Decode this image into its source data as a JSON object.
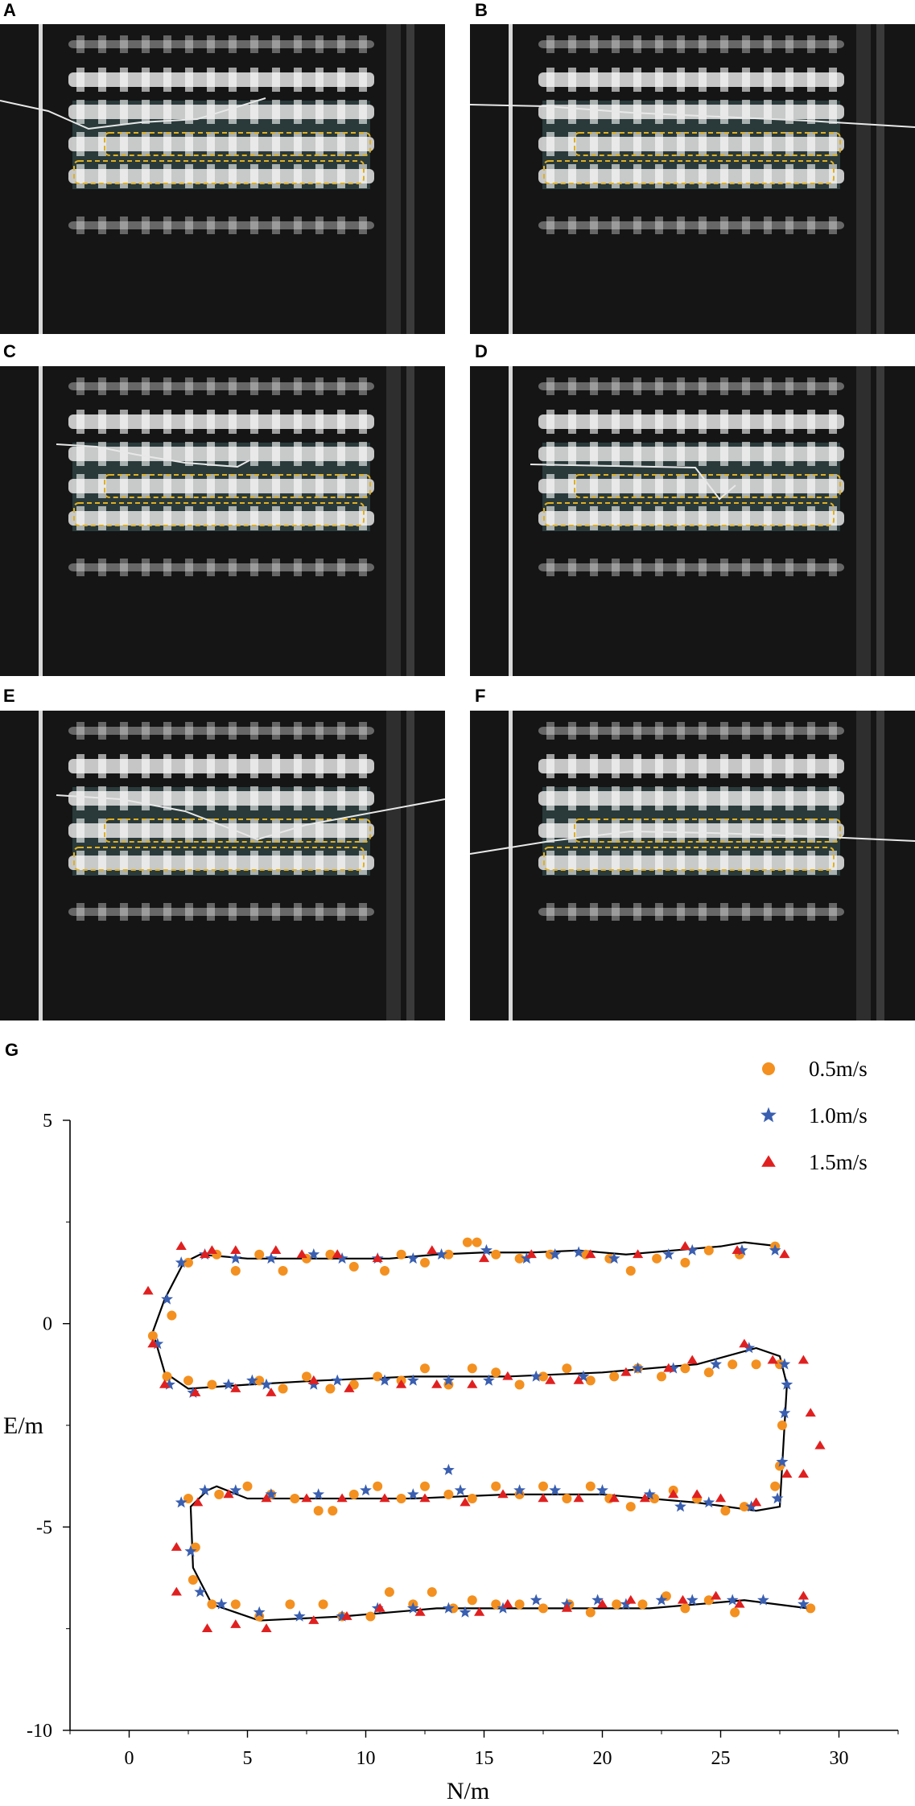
{
  "panels": [
    {
      "label": "A"
    },
    {
      "label": "B"
    },
    {
      "label": "C"
    },
    {
      "label": "D"
    },
    {
      "label": "E"
    },
    {
      "label": "F"
    }
  ],
  "chart_label": "G",
  "chart_data": {
    "type": "scatter",
    "title": "",
    "xlabel": "N/m",
    "ylabel": "E/m",
    "xlim": [
      -2.5,
      32.5
    ],
    "ylim": [
      -10,
      5
    ],
    "xticks": [
      0,
      5,
      10,
      15,
      20,
      25,
      30
    ],
    "yticks": [
      5,
      0,
      -5,
      -10
    ],
    "legend_position": "top-right",
    "reference_path": [
      [
        27.5,
        1.9
      ],
      [
        26,
        2.0
      ],
      [
        25,
        1.9
      ],
      [
        23,
        1.8
      ],
      [
        21,
        1.7
      ],
      [
        19,
        1.8
      ],
      [
        17,
        1.75
      ],
      [
        15,
        1.75
      ],
      [
        13,
        1.7
      ],
      [
        11,
        1.6
      ],
      [
        9,
        1.6
      ],
      [
        7,
        1.6
      ],
      [
        5,
        1.6
      ],
      [
        3,
        1.7
      ],
      [
        2.3,
        1.5
      ],
      [
        1.5,
        0.6
      ],
      [
        1.0,
        -0.2
      ],
      [
        1.5,
        -1.2
      ],
      [
        2.5,
        -1.6
      ],
      [
        5,
        -1.5
      ],
      [
        8,
        -1.4
      ],
      [
        12,
        -1.3
      ],
      [
        16,
        -1.3
      ],
      [
        20,
        -1.2
      ],
      [
        24,
        -1.0
      ],
      [
        26.5,
        -0.6
      ],
      [
        27.5,
        -0.8
      ],
      [
        27.8,
        -1.5
      ],
      [
        27.6,
        -3.5
      ],
      [
        27.5,
        -4.5
      ],
      [
        26.5,
        -4.6
      ],
      [
        24,
        -4.4
      ],
      [
        20,
        -4.2
      ],
      [
        16,
        -4.2
      ],
      [
        12,
        -4.3
      ],
      [
        8,
        -4.3
      ],
      [
        5,
        -4.3
      ],
      [
        3.7,
        -4.0
      ],
      [
        3.3,
        -4.1
      ],
      [
        2.6,
        -4.5
      ],
      [
        2.7,
        -6.0
      ],
      [
        3.5,
        -6.9
      ],
      [
        5.5,
        -7.3
      ],
      [
        9,
        -7.2
      ],
      [
        13,
        -7.0
      ],
      [
        18,
        -7.0
      ],
      [
        22,
        -7.0
      ],
      [
        26,
        -6.8
      ],
      [
        28.7,
        -7.0
      ]
    ],
    "series": [
      {
        "name": "0.5m/s",
        "marker": "circle",
        "color": "#f39020",
        "points": [
          [
            27.3,
            1.9
          ],
          [
            25.8,
            1.7
          ],
          [
            24.5,
            1.8
          ],
          [
            23.5,
            1.5
          ],
          [
            22.3,
            1.6
          ],
          [
            21.2,
            1.3
          ],
          [
            20.3,
            1.6
          ],
          [
            19.3,
            1.7
          ],
          [
            17.8,
            1.7
          ],
          [
            16.5,
            1.6
          ],
          [
            15.5,
            1.7
          ],
          [
            14.7,
            2.0
          ],
          [
            14.3,
            2.0
          ],
          [
            13.5,
            1.7
          ],
          [
            12.5,
            1.5
          ],
          [
            11.5,
            1.7
          ],
          [
            10.8,
            1.3
          ],
          [
            9.5,
            1.4
          ],
          [
            8.5,
            1.7
          ],
          [
            7.5,
            1.6
          ],
          [
            6.5,
            1.3
          ],
          [
            5.5,
            1.7
          ],
          [
            4.5,
            1.3
          ],
          [
            3.7,
            1.7
          ],
          [
            2.5,
            1.5
          ],
          [
            1.8,
            0.2
          ],
          [
            1.0,
            -0.3
          ],
          [
            1.6,
            -1.3
          ],
          [
            2.5,
            -1.4
          ],
          [
            3.5,
            -1.5
          ],
          [
            5.5,
            -1.4
          ],
          [
            6.5,
            -1.6
          ],
          [
            7.5,
            -1.3
          ],
          [
            8.5,
            -1.6
          ],
          [
            9.5,
            -1.5
          ],
          [
            10.5,
            -1.3
          ],
          [
            11.5,
            -1.4
          ],
          [
            12.5,
            -1.1
          ],
          [
            13.5,
            -1.5
          ],
          [
            14.5,
            -1.1
          ],
          [
            15.5,
            -1.2
          ],
          [
            16.5,
            -1.5
          ],
          [
            17.5,
            -1.3
          ],
          [
            18.5,
            -1.1
          ],
          [
            19.5,
            -1.4
          ],
          [
            20.5,
            -1.3
          ],
          [
            21.5,
            -1.1
          ],
          [
            22.5,
            -1.3
          ],
          [
            23.5,
            -1.1
          ],
          [
            24.5,
            -1.2
          ],
          [
            25.5,
            -1.0
          ],
          [
            26.5,
            -1.0
          ],
          [
            27.5,
            -1.0
          ],
          [
            27.6,
            -2.5
          ],
          [
            27.5,
            -3.5
          ],
          [
            27.3,
            -4.0
          ],
          [
            26.0,
            -4.5
          ],
          [
            25.2,
            -4.6
          ],
          [
            24.0,
            -4.3
          ],
          [
            23.0,
            -4.1
          ],
          [
            22.2,
            -4.3
          ],
          [
            21.2,
            -4.5
          ],
          [
            20.3,
            -4.3
          ],
          [
            19.5,
            -4.0
          ],
          [
            18.5,
            -4.3
          ],
          [
            17.5,
            -4.0
          ],
          [
            16.5,
            -4.2
          ],
          [
            15.5,
            -4.0
          ],
          [
            14.5,
            -4.3
          ],
          [
            13.5,
            -4.2
          ],
          [
            12.5,
            -4.0
          ],
          [
            11.5,
            -4.3
          ],
          [
            10.5,
            -4.0
          ],
          [
            9.5,
            -4.2
          ],
          [
            8.6,
            -4.6
          ],
          [
            8.0,
            -4.6
          ],
          [
            7.0,
            -4.3
          ],
          [
            6.0,
            -4.2
          ],
          [
            5.0,
            -4.0
          ],
          [
            3.8,
            -4.2
          ],
          [
            2.5,
            -4.3
          ],
          [
            2.8,
            -5.5
          ],
          [
            2.7,
            -6.3
          ],
          [
            3.5,
            -6.9
          ],
          [
            4.5,
            -6.9
          ],
          [
            5.5,
            -7.2
          ],
          [
            6.8,
            -6.9
          ],
          [
            8.2,
            -6.9
          ],
          [
            9.0,
            -7.2
          ],
          [
            10.2,
            -7.2
          ],
          [
            11.0,
            -6.6
          ],
          [
            12.0,
            -6.9
          ],
          [
            12.8,
            -6.6
          ],
          [
            13.7,
            -7.0
          ],
          [
            14.5,
            -6.8
          ],
          [
            15.5,
            -6.9
          ],
          [
            16.5,
            -6.9
          ],
          [
            17.5,
            -7.0
          ],
          [
            18.6,
            -6.9
          ],
          [
            19.5,
            -7.1
          ],
          [
            20.6,
            -6.9
          ],
          [
            21.7,
            -6.9
          ],
          [
            22.7,
            -6.7
          ],
          [
            23.5,
            -7.0
          ],
          [
            24.5,
            -6.8
          ],
          [
            25.6,
            -7.1
          ],
          [
            28.8,
            -7.0
          ]
        ]
      },
      {
        "name": "1.0m/s",
        "marker": "star",
        "color": "#3a5fb0",
        "points": [
          [
            27.3,
            1.8
          ],
          [
            25.9,
            1.8
          ],
          [
            23.8,
            1.8
          ],
          [
            22.8,
            1.7
          ],
          [
            20.5,
            1.6
          ],
          [
            19.0,
            1.75
          ],
          [
            18.0,
            1.7
          ],
          [
            16.8,
            1.6
          ],
          [
            15.1,
            1.8
          ],
          [
            13.2,
            1.7
          ],
          [
            12.0,
            1.6
          ],
          [
            10.5,
            1.6
          ],
          [
            9.0,
            1.6
          ],
          [
            7.8,
            1.7
          ],
          [
            6.0,
            1.6
          ],
          [
            4.5,
            1.6
          ],
          [
            3.2,
            1.7
          ],
          [
            2.2,
            1.5
          ],
          [
            1.6,
            0.6
          ],
          [
            1.2,
            -0.5
          ],
          [
            1.7,
            -1.5
          ],
          [
            2.7,
            -1.7
          ],
          [
            4.2,
            -1.5
          ],
          [
            5.2,
            -1.4
          ],
          [
            5.8,
            -1.5
          ],
          [
            7.8,
            -1.5
          ],
          [
            8.8,
            -1.4
          ],
          [
            10.8,
            -1.4
          ],
          [
            12.0,
            -1.4
          ],
          [
            13.5,
            -1.4
          ],
          [
            15.2,
            -1.4
          ],
          [
            17.2,
            -1.3
          ],
          [
            19.2,
            -1.3
          ],
          [
            21.5,
            -1.1
          ],
          [
            23.0,
            -1.1
          ],
          [
            24.8,
            -1.0
          ],
          [
            26.2,
            -0.6
          ],
          [
            27.7,
            -1.0
          ],
          [
            27.8,
            -1.5
          ],
          [
            27.7,
            -2.2
          ],
          [
            27.6,
            -3.4
          ],
          [
            27.4,
            -4.3
          ],
          [
            26.3,
            -4.5
          ],
          [
            24.5,
            -4.4
          ],
          [
            23.3,
            -4.5
          ],
          [
            22.0,
            -4.2
          ],
          [
            20.0,
            -4.1
          ],
          [
            18.0,
            -4.1
          ],
          [
            16.5,
            -4.1
          ],
          [
            14.0,
            -4.1
          ],
          [
            13.5,
            -3.6
          ],
          [
            12.0,
            -4.2
          ],
          [
            10.0,
            -4.1
          ],
          [
            8.0,
            -4.2
          ],
          [
            6.0,
            -4.2
          ],
          [
            4.5,
            -4.1
          ],
          [
            3.2,
            -4.1
          ],
          [
            2.2,
            -4.4
          ],
          [
            2.6,
            -5.6
          ],
          [
            3.0,
            -6.6
          ],
          [
            3.9,
            -6.9
          ],
          [
            5.5,
            -7.1
          ],
          [
            7.2,
            -7.2
          ],
          [
            9.0,
            -7.2
          ],
          [
            10.5,
            -7.0
          ],
          [
            12.0,
            -7.0
          ],
          [
            13.5,
            -7.0
          ],
          [
            14.2,
            -7.1
          ],
          [
            15.8,
            -7.0
          ],
          [
            17.2,
            -6.8
          ],
          [
            18.5,
            -6.9
          ],
          [
            19.8,
            -6.8
          ],
          [
            21.0,
            -6.9
          ],
          [
            22.5,
            -6.8
          ],
          [
            23.8,
            -6.8
          ],
          [
            25.5,
            -6.8
          ],
          [
            26.8,
            -6.8
          ],
          [
            28.5,
            -6.9
          ]
        ]
      },
      {
        "name": "1.5m/s",
        "marker": "triangle",
        "color": "#e02020",
        "points": [
          [
            27.7,
            1.7
          ],
          [
            25.7,
            1.8
          ],
          [
            23.5,
            1.9
          ],
          [
            21.5,
            1.7
          ],
          [
            19.5,
            1.7
          ],
          [
            17.0,
            1.7
          ],
          [
            15.0,
            1.6
          ],
          [
            12.8,
            1.8
          ],
          [
            10.5,
            1.6
          ],
          [
            8.8,
            1.7
          ],
          [
            7.3,
            1.7
          ],
          [
            6.2,
            1.8
          ],
          [
            4.5,
            1.8
          ],
          [
            3.5,
            1.8
          ],
          [
            3.2,
            1.7
          ],
          [
            2.2,
            1.9
          ],
          [
            0.8,
            0.8
          ],
          [
            1.0,
            -0.5
          ],
          [
            1.5,
            -1.5
          ],
          [
            2.8,
            -1.7
          ],
          [
            4.5,
            -1.6
          ],
          [
            6.0,
            -1.7
          ],
          [
            7.8,
            -1.4
          ],
          [
            9.3,
            -1.6
          ],
          [
            11.5,
            -1.5
          ],
          [
            13.0,
            -1.5
          ],
          [
            14.5,
            -1.5
          ],
          [
            16.0,
            -1.3
          ],
          [
            17.8,
            -1.4
          ],
          [
            19.0,
            -1.4
          ],
          [
            21.0,
            -1.2
          ],
          [
            22.8,
            -1.1
          ],
          [
            23.8,
            -0.9
          ],
          [
            26.0,
            -0.5
          ],
          [
            27.2,
            -0.9
          ],
          [
            28.5,
            -0.9
          ],
          [
            28.8,
            -2.2
          ],
          [
            29.2,
            -3.0
          ],
          [
            28.5,
            -3.7
          ],
          [
            27.8,
            -3.7
          ],
          [
            26.5,
            -4.4
          ],
          [
            25.0,
            -4.3
          ],
          [
            24.0,
            -4.2
          ],
          [
            23.0,
            -4.2
          ],
          [
            21.8,
            -4.3
          ],
          [
            20.5,
            -4.3
          ],
          [
            19.0,
            -4.3
          ],
          [
            17.5,
            -4.3
          ],
          [
            15.8,
            -4.2
          ],
          [
            14.2,
            -4.4
          ],
          [
            12.5,
            -4.3
          ],
          [
            10.8,
            -4.3
          ],
          [
            9.0,
            -4.3
          ],
          [
            7.5,
            -4.3
          ],
          [
            5.8,
            -4.3
          ],
          [
            4.2,
            -4.2
          ],
          [
            2.9,
            -4.4
          ],
          [
            2.0,
            -5.5
          ],
          [
            2.0,
            -6.6
          ],
          [
            3.3,
            -7.5
          ],
          [
            4.5,
            -7.4
          ],
          [
            5.8,
            -7.5
          ],
          [
            7.8,
            -7.3
          ],
          [
            9.2,
            -7.2
          ],
          [
            10.6,
            -7.0
          ],
          [
            12.3,
            -7.1
          ],
          [
            14.8,
            -7.1
          ],
          [
            16.0,
            -6.9
          ],
          [
            18.5,
            -7.0
          ],
          [
            20.0,
            -6.9
          ],
          [
            21.2,
            -6.8
          ],
          [
            23.4,
            -6.8
          ],
          [
            24.8,
            -6.7
          ],
          [
            25.8,
            -6.9
          ],
          [
            28.5,
            -6.7
          ]
        ]
      }
    ]
  }
}
